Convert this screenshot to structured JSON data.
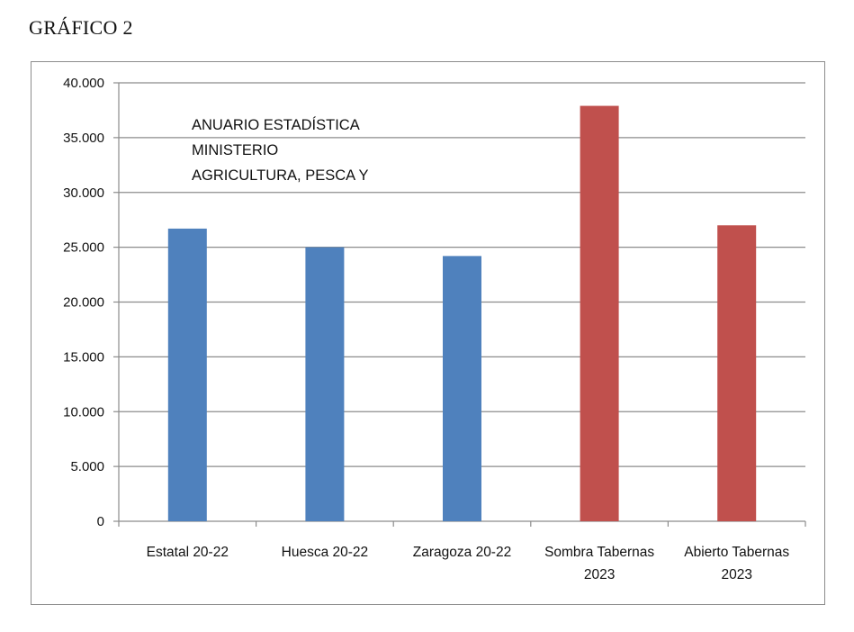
{
  "page_title": "GRÁFICO 2",
  "chart_data": {
    "type": "bar",
    "categories": [
      [
        "Estatal 20-22"
      ],
      [
        "Huesca 20-22"
      ],
      [
        "Zaragoza 20-22"
      ],
      [
        "Sombra Tabernas",
        "2023"
      ],
      [
        "Abierto Tabernas",
        "2023"
      ]
    ],
    "values": [
      26700,
      25000,
      24200,
      37900,
      27000
    ],
    "bar_colors": [
      "#4f81bd",
      "#4f81bd",
      "#4f81bd",
      "#c0504d",
      "#c0504d"
    ],
    "ylim": [
      0,
      40000
    ],
    "yticks": [
      "0",
      "5.000",
      "10.000",
      "15.000",
      "20.000",
      "25.000",
      "30.000",
      "35.000",
      "40.000"
    ],
    "grid": true,
    "annotation": [
      "ANUARIO ESTADÍSTICA",
      "MINISTERIO",
      "AGRICULTURA, PESCA Y"
    ]
  }
}
